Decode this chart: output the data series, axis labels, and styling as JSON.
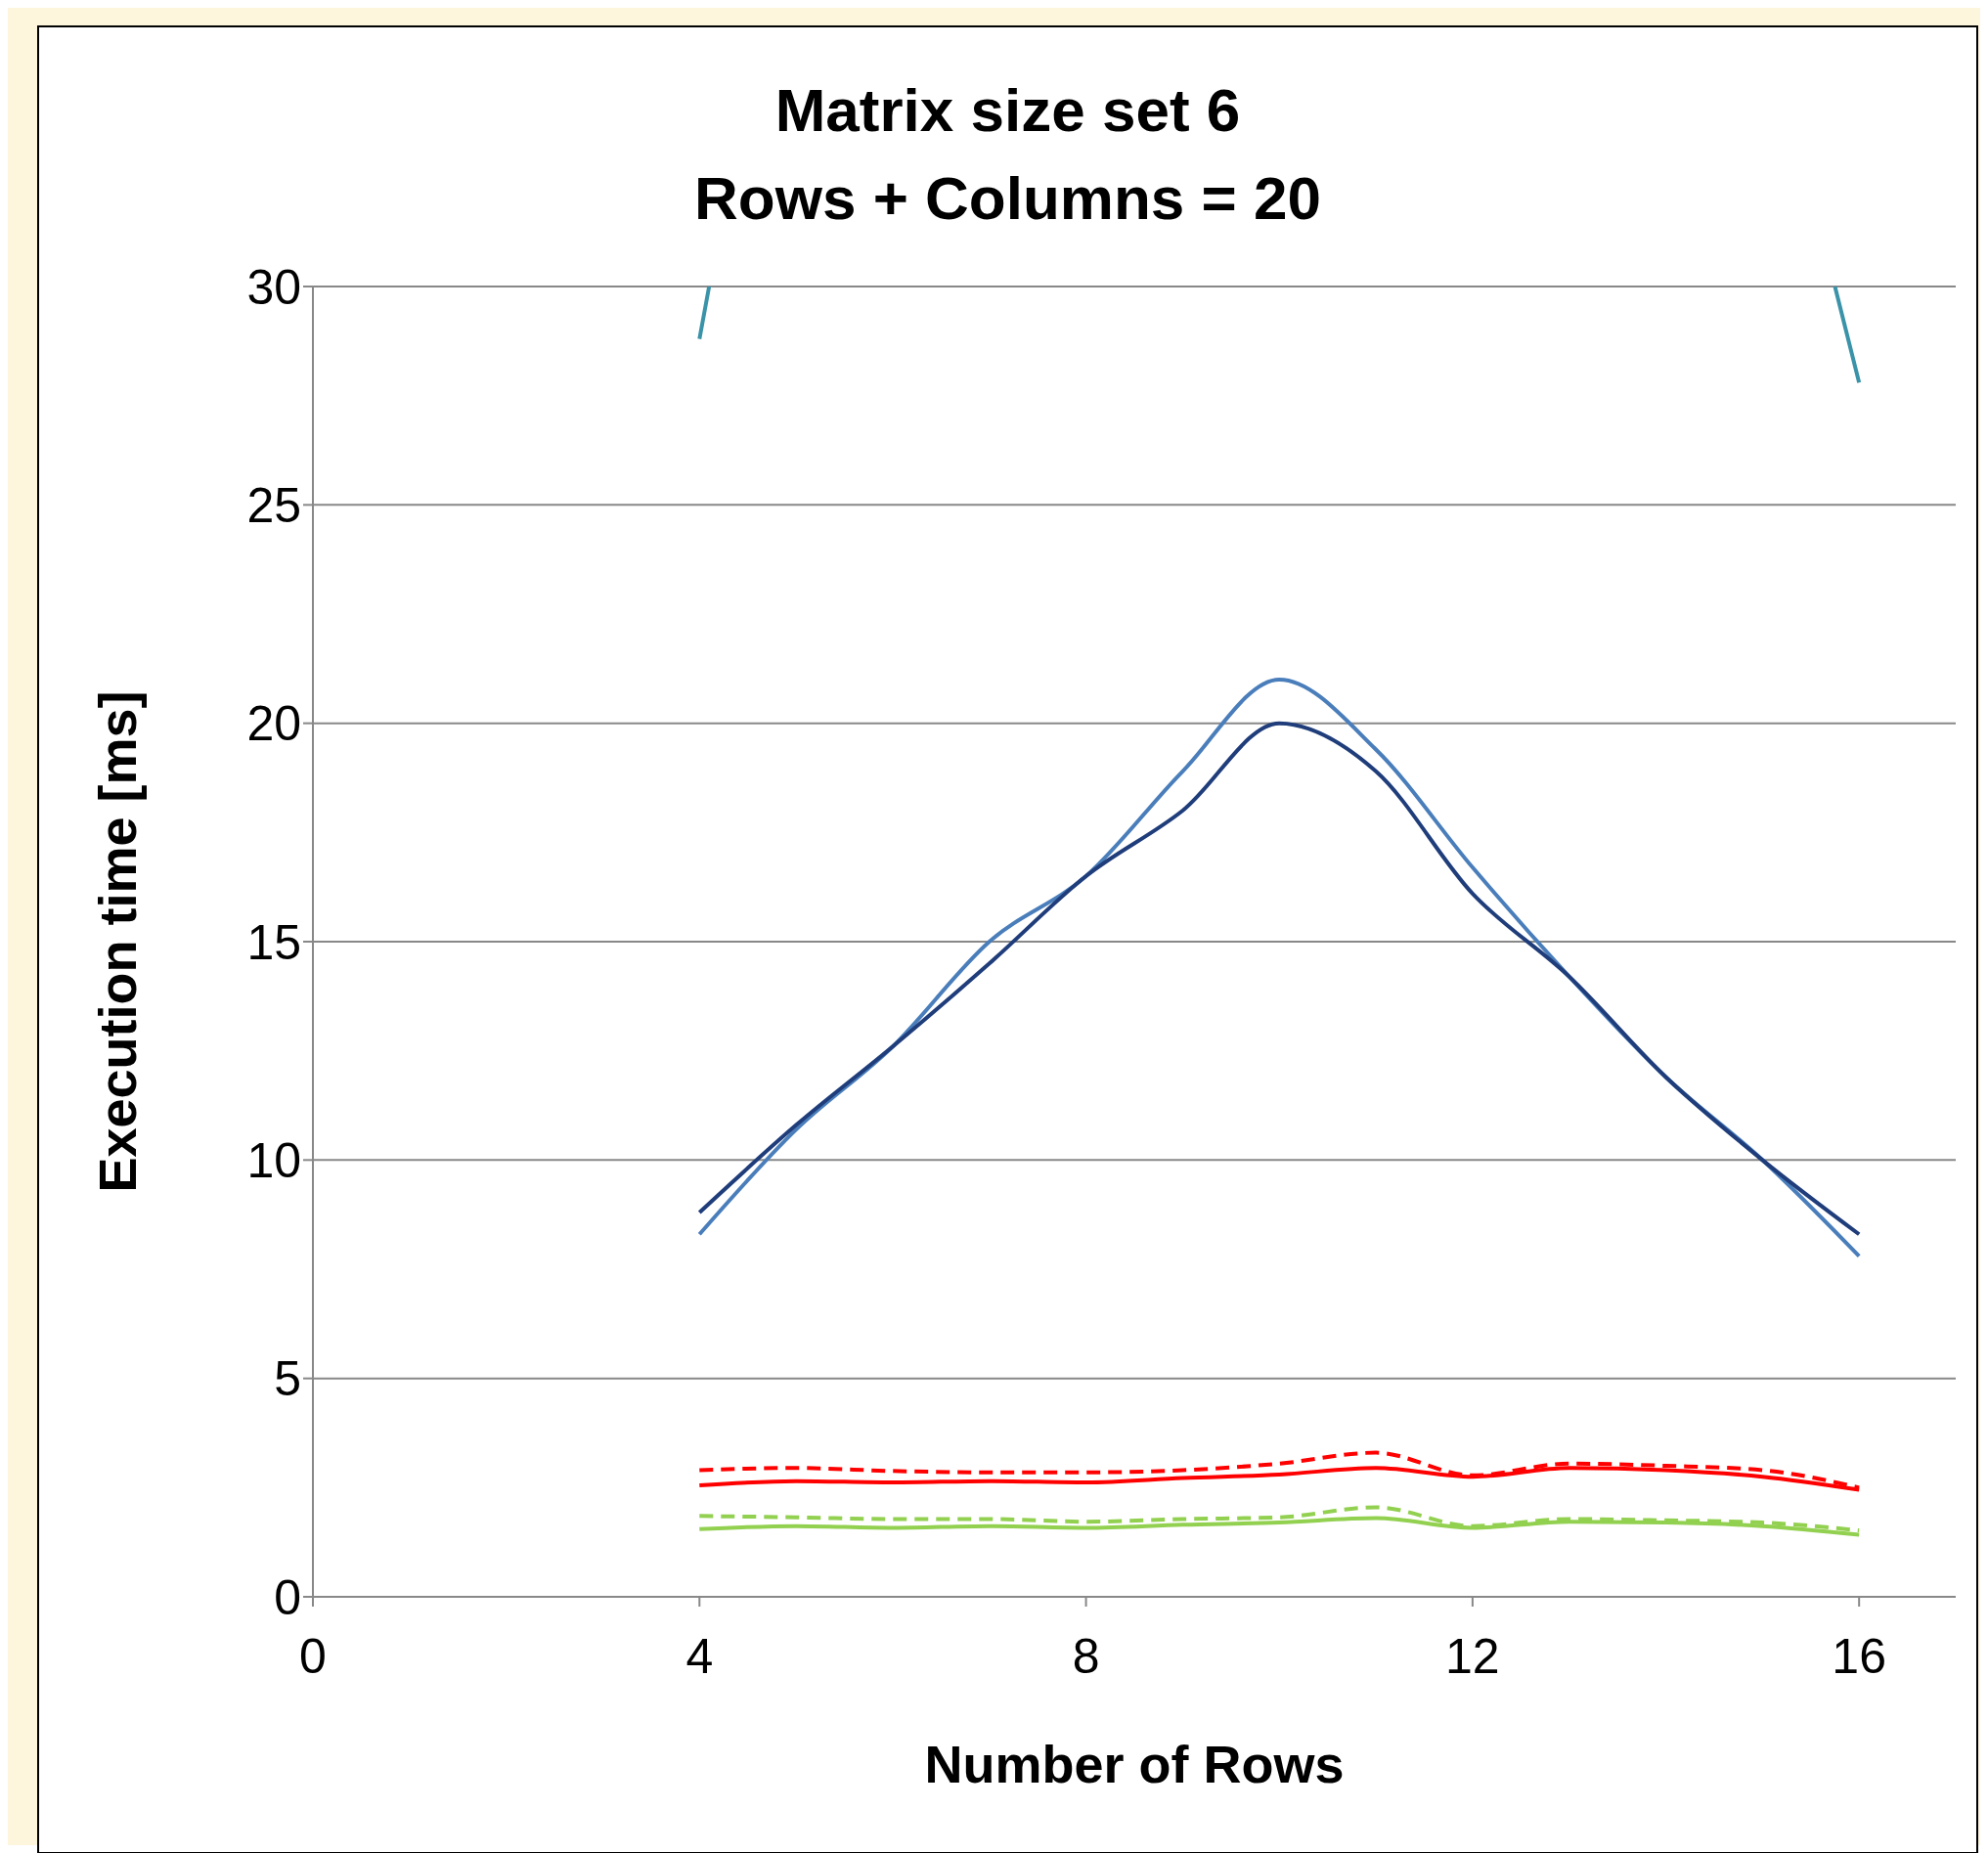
{
  "chart_data": {
    "type": "line",
    "title": "Matrix size set 6",
    "subtitle": "Rows + Columns = 20",
    "xlabel": "Number of Rows",
    "ylabel": "Execution time [ms]",
    "x": [
      4,
      5,
      6,
      7,
      8,
      9,
      10,
      11,
      12,
      13,
      14,
      15,
      16
    ],
    "xlim": [
      0,
      17
    ],
    "xticks": [
      0,
      4,
      8,
      12,
      16
    ],
    "ylim": [
      0,
      30
    ],
    "yticks": [
      0,
      5,
      10,
      15,
      20,
      25,
      30
    ],
    "grid": "y",
    "legend": false,
    "marker": "none",
    "line_style": "solid",
    "series": [
      {
        "color": "#3a93a8",
        "x": [
          4,
          4.1,
          null,
          15.75,
          16
        ],
        "values": [
          28.8,
          30,
          null,
          30,
          27.8
        ]
      },
      {
        "color": "#4a7ebb",
        "values": [
          8.3,
          10.7,
          12.6,
          15.0,
          16.5,
          18.9,
          21.0,
          19.4,
          16.7,
          14.2,
          11.9,
          10.0,
          7.8
        ]
      },
      {
        "color": "#1f3d7a",
        "values": [
          8.8,
          10.8,
          12.6,
          14.5,
          16.5,
          18.0,
          20.0,
          18.9,
          16.1,
          14.2,
          11.9,
          10.0,
          8.3
        ]
      },
      {
        "color": "#ff0000",
        "line_style": "dashed",
        "values": [
          2.9,
          2.95,
          2.88,
          2.85,
          2.85,
          2.9,
          3.05,
          3.3,
          2.78,
          3.05,
          3.0,
          2.9,
          2.5
        ]
      },
      {
        "color": "#ff0000",
        "values": [
          2.55,
          2.65,
          2.62,
          2.65,
          2.62,
          2.72,
          2.8,
          2.95,
          2.75,
          2.95,
          2.9,
          2.75,
          2.45
        ]
      },
      {
        "color": "#92d050",
        "line_style": "dashed",
        "values": [
          1.85,
          1.82,
          1.78,
          1.78,
          1.72,
          1.78,
          1.82,
          2.05,
          1.62,
          1.78,
          1.75,
          1.7,
          1.52
        ]
      },
      {
        "color": "#92d050",
        "values": [
          1.55,
          1.62,
          1.58,
          1.62,
          1.58,
          1.65,
          1.7,
          1.8,
          1.58,
          1.72,
          1.7,
          1.62,
          1.42
        ]
      }
    ]
  }
}
